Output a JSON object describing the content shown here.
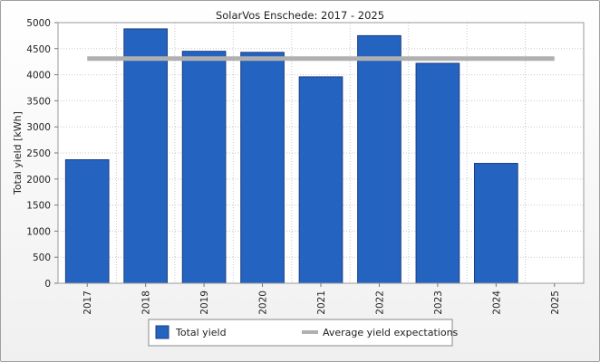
{
  "chart_data": {
    "type": "bar",
    "title": "SolarVos Enschede: 2017 - 2025",
    "xlabel": "",
    "ylabel": "Total yield [kWh]",
    "categories": [
      "2017",
      "2018",
      "2019",
      "2020",
      "2021",
      "2022",
      "2023",
      "2024",
      "2025"
    ],
    "series": [
      {
        "name": "Total yield",
        "color": "#2563c0",
        "values": [
          2370,
          4880,
          4450,
          4430,
          3960,
          4750,
          4220,
          2300,
          null
        ]
      }
    ],
    "reference_line": {
      "name": "Average yield expectations",
      "value": 4310,
      "color": "#b0b0b0"
    },
    "ylim": [
      0,
      5000
    ],
    "yticks": [
      0,
      500,
      1000,
      1500,
      2000,
      2500,
      3000,
      3500,
      4000,
      4500,
      5000
    ],
    "grid": true,
    "legend_position": "bottom"
  }
}
